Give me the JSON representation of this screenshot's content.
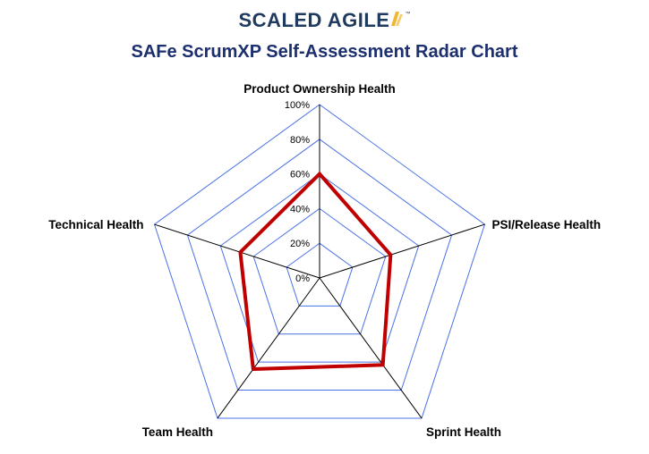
{
  "brand": {
    "name": "SCALED AGILE",
    "tm": "™"
  },
  "chart_data": {
    "type": "radar",
    "title": "SAFe ScrumXP Self-Assessment Radar Chart",
    "axes": [
      "Product Ownership Health",
      "PSI/Release Health",
      "Sprint Health",
      "Team Health",
      "Technical Health"
    ],
    "ticks": [
      "0%",
      "20%",
      "40%",
      "60%",
      "80%",
      "100%"
    ],
    "range": [
      0,
      100
    ],
    "series": [
      {
        "values": [
          60,
          43,
          62,
          65,
          48
        ]
      }
    ],
    "colors": {
      "grid": "#4a72e6",
      "spokes": "#000000",
      "series": "#c00000"
    },
    "legend": "none"
  }
}
